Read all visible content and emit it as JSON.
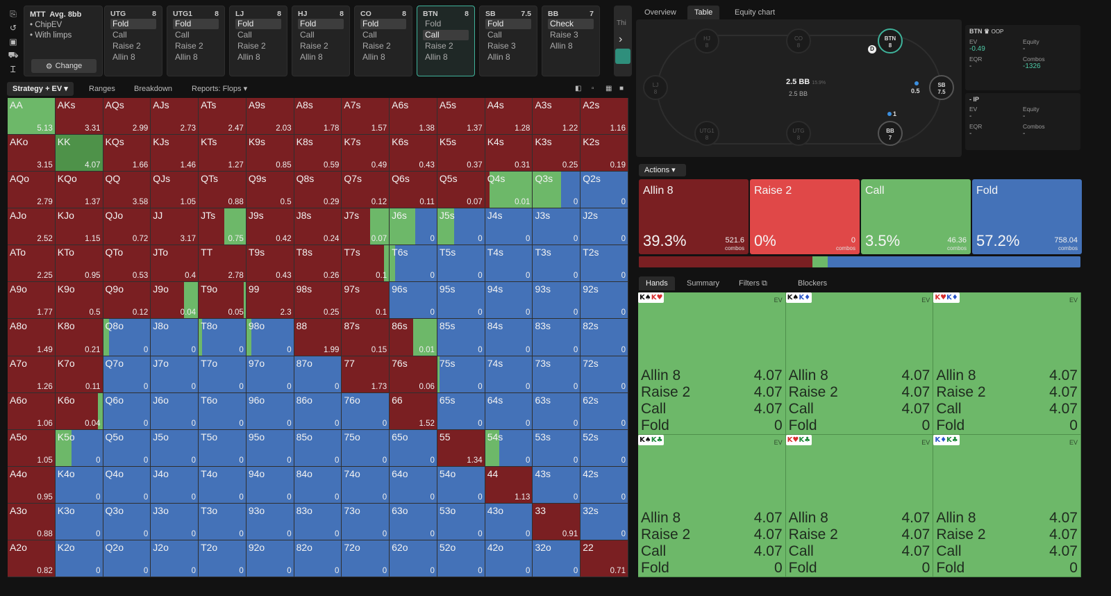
{
  "header": {
    "game": "MTT",
    "avg_label": "Avg. 8bb",
    "options": [
      "ChipEV",
      "With limps"
    ],
    "change_label": "Change",
    "change_icon": "gear-icon"
  },
  "positions": [
    {
      "name": "UTG",
      "stack": "8",
      "actions": [
        "Fold",
        "Call",
        "Raise 2",
        "Allin 8"
      ],
      "selected": 0
    },
    {
      "name": "UTG1",
      "stack": "8",
      "actions": [
        "Fold",
        "Call",
        "Raise 2",
        "Allin 8"
      ],
      "selected": 0
    },
    {
      "name": "LJ",
      "stack": "8",
      "actions": [
        "Fold",
        "Call",
        "Raise 2",
        "Allin 8"
      ],
      "selected": 0
    },
    {
      "name": "HJ",
      "stack": "8",
      "actions": [
        "Fold",
        "Call",
        "Raise 2",
        "Allin 8"
      ],
      "selected": 0
    },
    {
      "name": "CO",
      "stack": "8",
      "actions": [
        "Fold",
        "Call",
        "Raise 2",
        "Allin 8"
      ],
      "selected": 0
    },
    {
      "name": "BTN",
      "stack": "8",
      "actions": [
        "Fold",
        "Call",
        "Raise 2",
        "Allin 8"
      ],
      "selected": 1,
      "active": true
    },
    {
      "name": "SB",
      "stack": "7.5",
      "actions": [
        "Fold",
        "Call",
        "Raise 3",
        "Allin 8"
      ],
      "selected": 0
    },
    {
      "name": "BB",
      "stack": "7",
      "actions": [
        "Check",
        "Raise 3",
        "Allin 8"
      ],
      "selected": 0
    }
  ],
  "scroll_label": "Thi",
  "toolbar": {
    "tabs": [
      "Strategy + EV",
      "Ranges",
      "Breakdown",
      "Reports: Flops"
    ]
  },
  "colors": {
    "allin": "#7a1f22",
    "raise": "#e04848",
    "call": "#6db869",
    "fold": "#4472b8"
  },
  "grid": [
    [
      [
        "AA",
        "5.13"
      ],
      [
        "AKs",
        "3.31"
      ],
      [
        "AQs",
        "2.99"
      ],
      [
        "AJs",
        "2.73"
      ],
      [
        "ATs",
        "2.47"
      ],
      [
        "A9s",
        "2.03"
      ],
      [
        "A8s",
        "1.78"
      ],
      [
        "A7s",
        "1.57"
      ],
      [
        "A6s",
        "1.38"
      ],
      [
        "A5s",
        "1.37"
      ],
      [
        "A4s",
        "1.28"
      ],
      [
        "A3s",
        "1.22"
      ],
      [
        "A2s",
        "1.16"
      ]
    ],
    [
      [
        "AKo",
        "3.15"
      ],
      [
        "KK",
        "4.07"
      ],
      [
        "KQs",
        "1.66"
      ],
      [
        "KJs",
        "1.46"
      ],
      [
        "KTs",
        "1.27"
      ],
      [
        "K9s",
        "0.85"
      ],
      [
        "K8s",
        "0.59"
      ],
      [
        "K7s",
        "0.49"
      ],
      [
        "K6s",
        "0.43"
      ],
      [
        "K5s",
        "0.37"
      ],
      [
        "K4s",
        "0.31"
      ],
      [
        "K3s",
        "0.25"
      ],
      [
        "K2s",
        "0.19"
      ]
    ],
    [
      [
        "AQo",
        "2.79"
      ],
      [
        "KQo",
        "1.37"
      ],
      [
        "QQ",
        "3.58"
      ],
      [
        "QJs",
        "1.05"
      ],
      [
        "QTs",
        "0.88"
      ],
      [
        "Q9s",
        "0.5"
      ],
      [
        "Q8s",
        "0.29"
      ],
      [
        "Q7s",
        "0.12"
      ],
      [
        "Q6s",
        "0.11"
      ],
      [
        "Q5s",
        "0.07"
      ],
      [
        "Q4s",
        "0.01"
      ],
      [
        "Q3s",
        "0"
      ],
      [
        "Q2s",
        "0"
      ]
    ],
    [
      [
        "AJo",
        "2.52"
      ],
      [
        "KJo",
        "1.15"
      ],
      [
        "QJo",
        "0.72"
      ],
      [
        "JJ",
        "3.17"
      ],
      [
        "JTs",
        "0.75"
      ],
      [
        "J9s",
        "0.42"
      ],
      [
        "J8s",
        "0.24"
      ],
      [
        "J7s",
        "0.07"
      ],
      [
        "J6s",
        "0"
      ],
      [
        "J5s",
        "0"
      ],
      [
        "J4s",
        "0"
      ],
      [
        "J3s",
        "0"
      ],
      [
        "J2s",
        "0"
      ]
    ],
    [
      [
        "ATo",
        "2.25"
      ],
      [
        "KTo",
        "0.95"
      ],
      [
        "QTo",
        "0.53"
      ],
      [
        "JTo",
        "0.4"
      ],
      [
        "TT",
        "2.78"
      ],
      [
        "T9s",
        "0.43"
      ],
      [
        "T8s",
        "0.26"
      ],
      [
        "T7s",
        "0.1"
      ],
      [
        "T6s",
        "0"
      ],
      [
        "T5s",
        "0"
      ],
      [
        "T4s",
        "0"
      ],
      [
        "T3s",
        "0"
      ],
      [
        "T2s",
        "0"
      ]
    ],
    [
      [
        "A9o",
        "1.77"
      ],
      [
        "K9o",
        "0.5"
      ],
      [
        "Q9o",
        "0.12"
      ],
      [
        "J9o",
        "0.04"
      ],
      [
        "T9o",
        "0.05"
      ],
      [
        "99",
        "2.3"
      ],
      [
        "98s",
        "0.25"
      ],
      [
        "97s",
        "0.1"
      ],
      [
        "96s",
        "0"
      ],
      [
        "95s",
        "0"
      ],
      [
        "94s",
        "0"
      ],
      [
        "93s",
        "0"
      ],
      [
        "92s",
        "0"
      ]
    ],
    [
      [
        "A8o",
        "1.49"
      ],
      [
        "K8o",
        "0.21"
      ],
      [
        "Q8o",
        "0"
      ],
      [
        "J8o",
        "0"
      ],
      [
        "T8o",
        "0"
      ],
      [
        "98o",
        "0"
      ],
      [
        "88",
        "1.99"
      ],
      [
        "87s",
        "0.15"
      ],
      [
        "86s",
        "0.01"
      ],
      [
        "85s",
        "0"
      ],
      [
        "84s",
        "0"
      ],
      [
        "83s",
        "0"
      ],
      [
        "82s",
        "0"
      ]
    ],
    [
      [
        "A7o",
        "1.26"
      ],
      [
        "K7o",
        "0.11"
      ],
      [
        "Q7o",
        "0"
      ],
      [
        "J7o",
        "0"
      ],
      [
        "T7o",
        "0"
      ],
      [
        "97o",
        "0"
      ],
      [
        "87o",
        "0"
      ],
      [
        "77",
        "1.73"
      ],
      [
        "76s",
        "0.06"
      ],
      [
        "75s",
        "0"
      ],
      [
        "74s",
        "0"
      ],
      [
        "73s",
        "0"
      ],
      [
        "72s",
        "0"
      ]
    ],
    [
      [
        "A6o",
        "1.06"
      ],
      [
        "K6o",
        "0.04"
      ],
      [
        "Q6o",
        "0"
      ],
      [
        "J6o",
        "0"
      ],
      [
        "T6o",
        "0"
      ],
      [
        "96o",
        "0"
      ],
      [
        "86o",
        "0"
      ],
      [
        "76o",
        "0"
      ],
      [
        "66",
        "1.52"
      ],
      [
        "65s",
        "0"
      ],
      [
        "64s",
        "0"
      ],
      [
        "63s",
        "0"
      ],
      [
        "62s",
        "0"
      ]
    ],
    [
      [
        "A5o",
        "1.05"
      ],
      [
        "K5o",
        "0"
      ],
      [
        "Q5o",
        "0"
      ],
      [
        "J5o",
        "0"
      ],
      [
        "T5o",
        "0"
      ],
      [
        "95o",
        "0"
      ],
      [
        "85o",
        "0"
      ],
      [
        "75o",
        "0"
      ],
      [
        "65o",
        "0"
      ],
      [
        "55",
        "1.34"
      ],
      [
        "54s",
        "0"
      ],
      [
        "53s",
        "0"
      ],
      [
        "52s",
        "0"
      ]
    ],
    [
      [
        "A4o",
        "0.95"
      ],
      [
        "K4o",
        "0"
      ],
      [
        "Q4o",
        "0"
      ],
      [
        "J4o",
        "0"
      ],
      [
        "T4o",
        "0"
      ],
      [
        "94o",
        "0"
      ],
      [
        "84o",
        "0"
      ],
      [
        "74o",
        "0"
      ],
      [
        "64o",
        "0"
      ],
      [
        "54o",
        "0"
      ],
      [
        "44",
        "1.13"
      ],
      [
        "43s",
        "0"
      ],
      [
        "42s",
        "0"
      ]
    ],
    [
      [
        "A3o",
        "0.88"
      ],
      [
        "K3o",
        "0"
      ],
      [
        "Q3o",
        "0"
      ],
      [
        "J3o",
        "0"
      ],
      [
        "T3o",
        "0"
      ],
      [
        "93o",
        "0"
      ],
      [
        "83o",
        "0"
      ],
      [
        "73o",
        "0"
      ],
      [
        "63o",
        "0"
      ],
      [
        "53o",
        "0"
      ],
      [
        "43o",
        "0"
      ],
      [
        "33",
        "0.91"
      ],
      [
        "32s",
        "0"
      ]
    ],
    [
      [
        "A2o",
        "0.82"
      ],
      [
        "K2o",
        "0"
      ],
      [
        "Q2o",
        "0"
      ],
      [
        "J2o",
        "0"
      ],
      [
        "T2o",
        "0"
      ],
      [
        "92o",
        "0"
      ],
      [
        "82o",
        "0"
      ],
      [
        "72o",
        "0"
      ],
      [
        "62o",
        "0"
      ],
      [
        "52o",
        "0"
      ],
      [
        "42o",
        "0"
      ],
      [
        "32o",
        "0"
      ],
      [
        "22",
        "0.71"
      ]
    ]
  ],
  "cell_mix": {
    "AA": {
      "call": 1
    },
    "KK": {
      "call": 1
    },
    "Q4s": {
      "allin": 0.1,
      "call": 0.9
    },
    "Q3s": {
      "call": 0.6,
      "fold": 0.4
    },
    "JTs": {
      "allin": 0.55,
      "call": 0.45
    },
    "J7s": {
      "allin": 0.6,
      "call": 0.4
    },
    "J6s": {
      "call": 0.55,
      "fold": 0.45
    },
    "J5s": {
      "call": 0.35,
      "fold": 0.65
    },
    "T7s": {
      "allin": 0.9,
      "call": 0.1
    },
    "T6s": {
      "call": 0.12,
      "fold": 0.88
    },
    "J9o": {
      "allin": 0.7,
      "call": 0.3
    },
    "T9o": {
      "allin": 0.96,
      "call": 0.04
    },
    "Q8o": {
      "call": 0.12,
      "fold": 0.88
    },
    "T8o": {
      "call": 0.08,
      "fold": 0.92
    },
    "98o": {
      "call": 0.1,
      "fold": 0.9
    },
    "86s": {
      "allin": 0.5,
      "call": 0.5
    },
    "75s": {
      "call": 0.04,
      "fold": 0.96
    },
    "K6o": {
      "allin": 0.9,
      "call": 0.1
    },
    "K5o": {
      "call": 0.35,
      "fold": 0.65
    },
    "54s": {
      "call": 0.3,
      "fold": 0.7
    }
  },
  "right_tabs": [
    "Overview",
    "Table",
    "Equity chart"
  ],
  "table": {
    "pot": "2.5 BB",
    "pot_pct": "15.9%",
    "pot_sub": "2.5 BB",
    "seats": [
      {
        "name": "HJ",
        "stack": "8"
      },
      {
        "name": "CO",
        "stack": "8"
      },
      {
        "name": "BTN",
        "stack": "8"
      },
      {
        "name": "LJ",
        "stack": "8"
      },
      {
        "name": "SB",
        "stack": "7.5"
      },
      {
        "name": "UTG1",
        "stack": "8"
      },
      {
        "name": "UTG",
        "stack": "8"
      },
      {
        "name": "BB",
        "stack": "7"
      }
    ],
    "dealer": "D",
    "sb_bet": "0.5",
    "bb_bet": "1"
  },
  "stats": {
    "oop": {
      "title": "BTN",
      "crown": "♛",
      "tag": "OOP",
      "ev_label": "EV",
      "ev": "-0.49",
      "equity_label": "Equity",
      "equity": "-",
      "eqr_label": "EQR",
      "eqr": "-",
      "combos_label": "Combos",
      "combos": "-1326"
    },
    "ip": {
      "title": "IP",
      "ev_label": "EV",
      "ev": "-",
      "equity_label": "Equity",
      "equity": "-",
      "eqr_label": "EQR",
      "eqr": "-",
      "combos_label": "Combos",
      "combos": "-"
    }
  },
  "actions_tab": "Actions",
  "actions": [
    {
      "name": "Allin 8",
      "pct": "39.3%",
      "combos": "521.6",
      "combos_label": "combos",
      "color": "#7a1f22"
    },
    {
      "name": "Raise 2",
      "pct": "0%",
      "combos": "0",
      "combos_label": "combos",
      "color": "#e04848"
    },
    {
      "name": "Call",
      "pct": "3.5%",
      "combos": "46.36",
      "combos_label": "combos",
      "color": "#6db869"
    },
    {
      "name": "Fold",
      "pct": "57.2%",
      "combos": "758.04",
      "combos_label": "combos",
      "color": "#4472b8"
    }
  ],
  "freq": {
    "allin": 0.393,
    "raise": 0,
    "call": 0.035,
    "fold": 0.572
  },
  "hand_tabs": [
    "Hands",
    "Summary",
    "Filters",
    "Blockers"
  ],
  "hands": [
    {
      "c1": "K♠",
      "c1c": "b",
      "c2": "K♥",
      "c2c": "r",
      "ev_label": "EV",
      "rows": [
        [
          "Allin 8",
          "4.07"
        ],
        [
          "Raise 2",
          "4.07"
        ],
        [
          "Call",
          "4.07"
        ],
        [
          "Fold",
          "0"
        ]
      ]
    },
    {
      "c1": "K♠",
      "c1c": "b",
      "c2": "K♦",
      "c2c": "bl",
      "ev_label": "EV",
      "rows": [
        [
          "Allin 8",
          "4.07"
        ],
        [
          "Raise 2",
          "4.07"
        ],
        [
          "Call",
          "4.07"
        ],
        [
          "Fold",
          "0"
        ]
      ]
    },
    {
      "c1": "K♥",
      "c1c": "r",
      "c2": "K♦",
      "c2c": "bl",
      "ev_label": "EV",
      "rows": [
        [
          "Allin 8",
          "4.07"
        ],
        [
          "Raise 2",
          "4.07"
        ],
        [
          "Call",
          "4.07"
        ],
        [
          "Fold",
          "0"
        ]
      ]
    },
    {
      "c1": "K♠",
      "c1c": "b",
      "c2": "K♣",
      "c2c": "g",
      "ev_label": "EV",
      "rows": [
        [
          "Allin 8",
          "4.07"
        ],
        [
          "Raise 2",
          "4.07"
        ],
        [
          "Call",
          "4.07"
        ],
        [
          "Fold",
          "0"
        ]
      ]
    },
    {
      "c1": "K♥",
      "c1c": "r",
      "c2": "K♣",
      "c2c": "g",
      "ev_label": "EV",
      "rows": [
        [
          "Allin 8",
          "4.07"
        ],
        [
          "Raise 2",
          "4.07"
        ],
        [
          "Call",
          "4.07"
        ],
        [
          "Fold",
          "0"
        ]
      ]
    },
    {
      "c1": "K♦",
      "c1c": "bl",
      "c2": "K♣",
      "c2c": "g",
      "ev_label": "EV",
      "rows": [
        [
          "Allin 8",
          "4.07"
        ],
        [
          "Raise 2",
          "4.07"
        ],
        [
          "Call",
          "4.07"
        ],
        [
          "Fold",
          "0"
        ]
      ]
    }
  ]
}
